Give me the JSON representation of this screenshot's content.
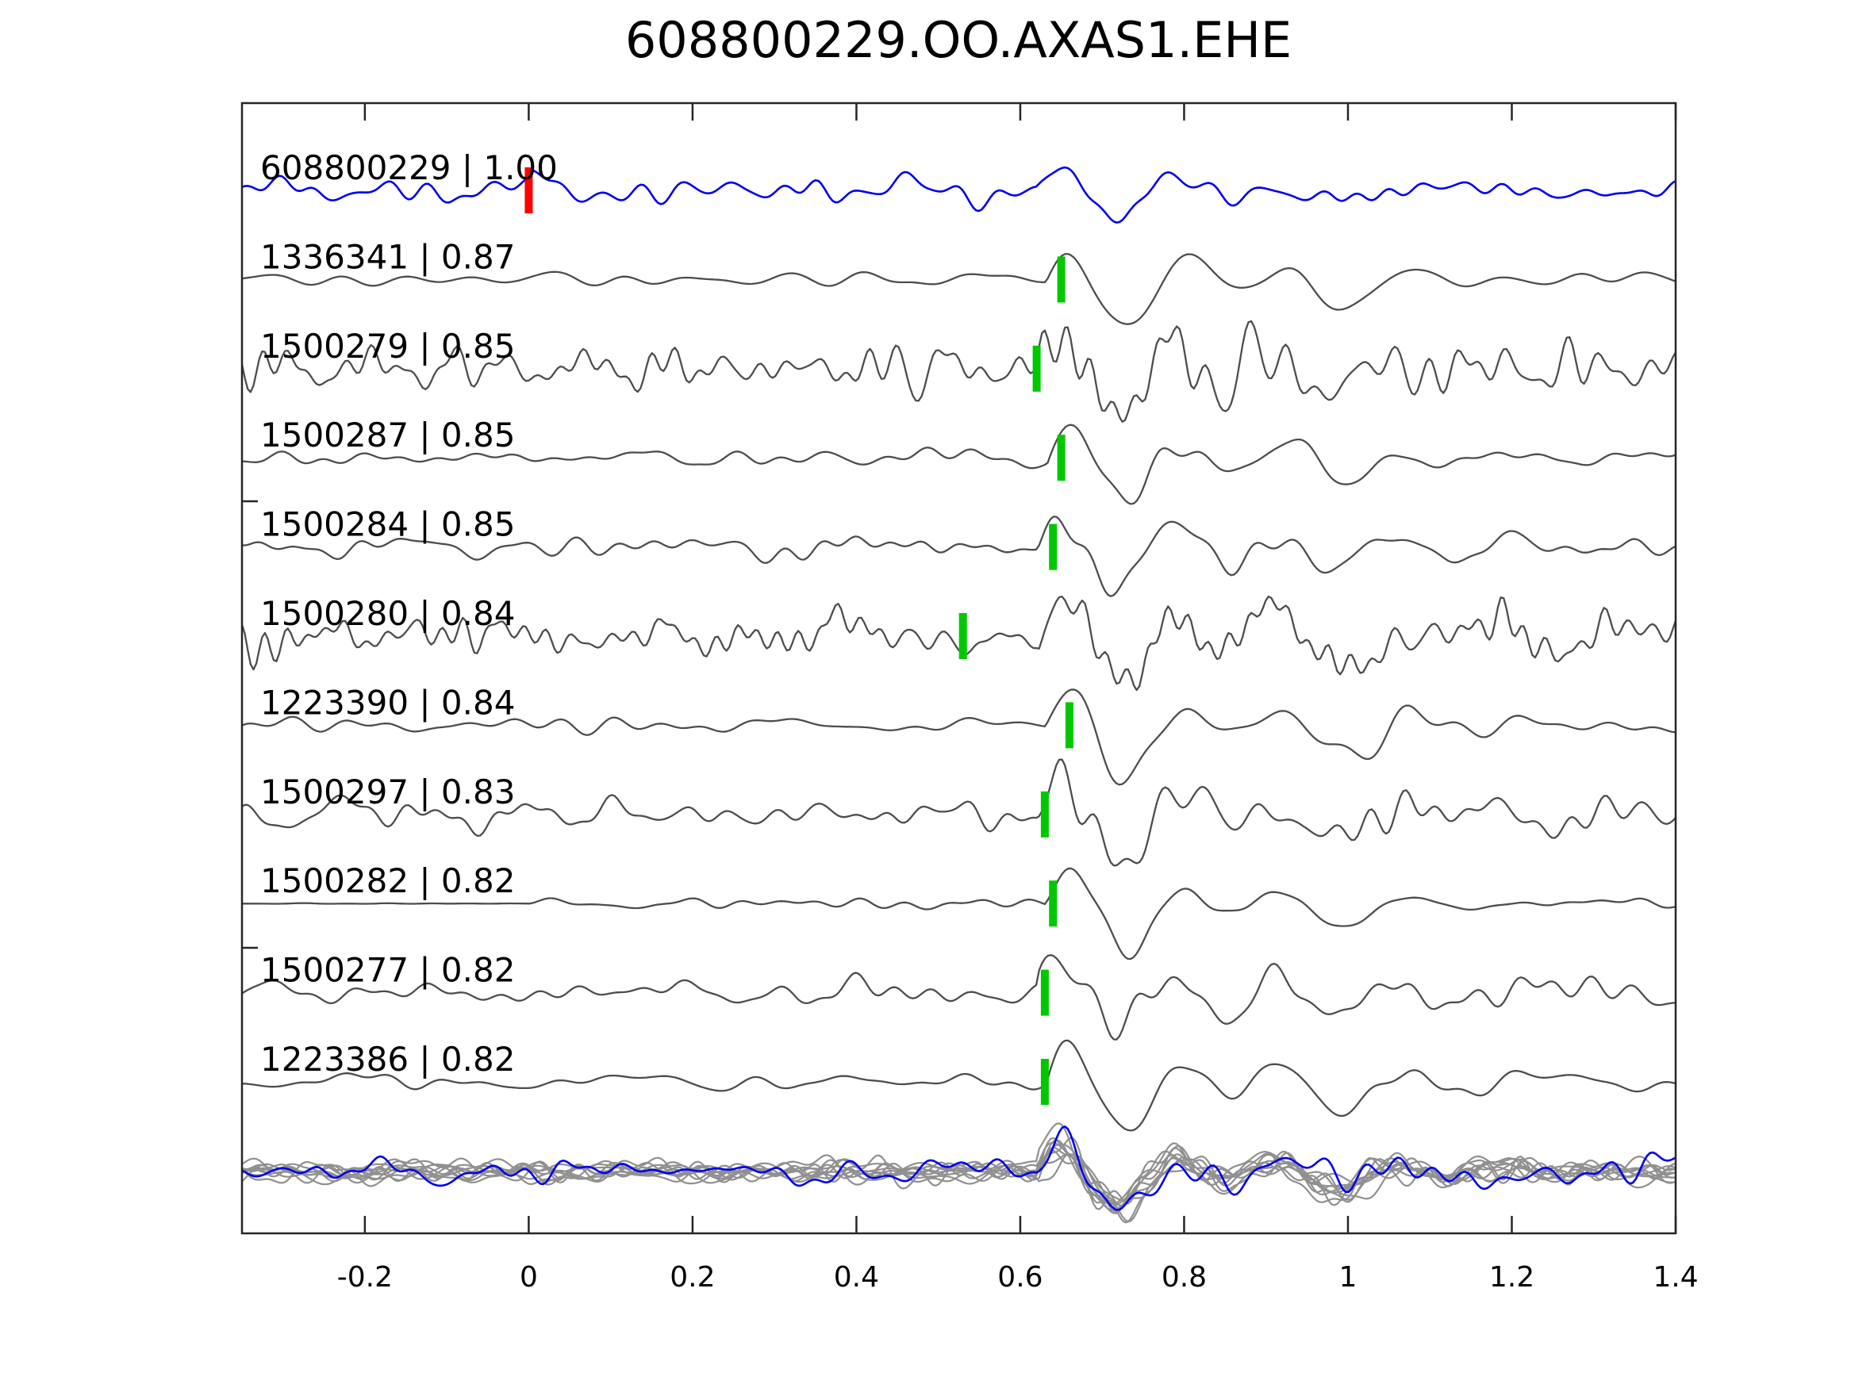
{
  "figure_title": "608800229.OO.AXAS1.EHE",
  "colors": {
    "background": "#ffffff",
    "axis": "#262626",
    "text": "#000000",
    "reference_trace": "#0000ee",
    "match_trace": "#4d4d4d",
    "overlay_trace": "#909090",
    "reference_pick": "#ff0000",
    "cc_pick": "#00c800"
  },
  "chart_data": {
    "type": "line",
    "title": "608800229.OO.AXAS1.EHE",
    "xlabel": "",
    "ylabel": "",
    "xlim": [
      -0.35,
      1.4
    ],
    "x_tick_values": [
      -0.2,
      0,
      0.2,
      0.4,
      0.6,
      0.8,
      1.0,
      1.2,
      1.4
    ],
    "x_tick_labels": [
      "-0.2",
      "0",
      "0.2",
      "0.4",
      "0.6",
      "0.8",
      "1",
      "1.2",
      "1.4"
    ],
    "grid": false,
    "legend": false,
    "reference_pick_time": 0.0,
    "rows": [
      {
        "id": "608800229",
        "correlation": "1.00",
        "label": "608800229 | 1.00",
        "role": "reference",
        "pick_time": 0.0,
        "pick_color": "#ff0000",
        "waveform": {
          "seed": 101,
          "noise_amp": 19,
          "noise_freq": 27,
          "event_time": 0.62,
          "event_amp": 26,
          "coda": 0.5,
          "boost_time": 0.0
        }
      },
      {
        "id": "1336341",
        "correlation": "0.87",
        "label": "1336341 | 0.87",
        "role": "match",
        "pick_time": 0.65,
        "pick_color": "#00c800",
        "waveform": {
          "seed": 202,
          "noise_amp": 10,
          "noise_freq": 15,
          "event_time": 0.63,
          "event_amp": 52,
          "coda": 0.9
        }
      },
      {
        "id": "1500279",
        "correlation": "0.85",
        "label": "1500279 | 0.85",
        "role": "match",
        "pick_time": 0.62,
        "pick_color": "#00c800",
        "waveform": {
          "seed": 303,
          "noise_amp": 35,
          "noise_freq": 36,
          "event_time": 0.62,
          "event_amp": 42,
          "coda": 0.7
        }
      },
      {
        "id": "1500287",
        "correlation": "0.85",
        "label": "1500287 | 0.85",
        "role": "match",
        "pick_time": 0.65,
        "pick_color": "#00c800",
        "waveform": {
          "seed": 404,
          "noise_amp": 13,
          "noise_freq": 20,
          "event_time": 0.63,
          "event_amp": 52,
          "coda": 0.9
        }
      },
      {
        "id": "1500284",
        "correlation": "0.85",
        "label": "1500284 | 0.85",
        "role": "match",
        "pick_time": 0.64,
        "pick_color": "#00c800",
        "waveform": {
          "seed": 505,
          "noise_amp": 17,
          "noise_freq": 24,
          "event_time": 0.62,
          "event_amp": 46,
          "coda": 0.8
        }
      },
      {
        "id": "1500280",
        "correlation": "0.84",
        "label": "1500280 | 0.84",
        "role": "match",
        "pick_time": 0.53,
        "pick_color": "#00c800",
        "waveform": {
          "seed": 606,
          "noise_amp": 33,
          "noise_freq": 40,
          "event_time": 0.62,
          "event_amp": 36,
          "coda": 0.6
        }
      },
      {
        "id": "1223390",
        "correlation": "0.84",
        "label": "1223390 | 0.84",
        "role": "match",
        "pick_time": 0.66,
        "pick_color": "#00c800",
        "waveform": {
          "seed": 707,
          "noise_amp": 13,
          "noise_freq": 17,
          "event_time": 0.63,
          "event_amp": 56,
          "coda": 1.0
        }
      },
      {
        "id": "1500297",
        "correlation": "0.83",
        "label": "1500297 | 0.83",
        "role": "match",
        "pick_time": 0.63,
        "pick_color": "#00c800",
        "waveform": {
          "seed": 808,
          "noise_amp": 26,
          "noise_freq": 30,
          "event_time": 0.62,
          "event_amp": 46,
          "coda": 0.7
        }
      },
      {
        "id": "1500282",
        "correlation": "0.82",
        "label": "1500282 | 0.82",
        "role": "match",
        "pick_time": 0.64,
        "pick_color": "#00c800",
        "waveform": {
          "seed": 909,
          "noise_amp": 8,
          "noise_freq": 20,
          "event_time": 0.63,
          "event_amp": 52,
          "coda": 1.1,
          "silent_before": 0.0
        }
      },
      {
        "id": "1500277",
        "correlation": "0.82",
        "label": "1500277 | 0.82",
        "role": "match",
        "pick_time": 0.63,
        "pick_color": "#00c800",
        "waveform": {
          "seed": 1010,
          "noise_amp": 20,
          "noise_freq": 22,
          "event_time": 0.62,
          "event_amp": 52,
          "coda": 0.9
        }
      },
      {
        "id": "1223386",
        "correlation": "0.82",
        "label": "1223386 | 0.82",
        "role": "match",
        "pick_time": 0.63,
        "pick_color": "#00c800",
        "waveform": {
          "seed": 1111,
          "noise_amp": 13,
          "noise_freq": 18,
          "event_time": 0.63,
          "event_amp": 56,
          "coda": 0.9
        }
      }
    ],
    "overlay_row": {
      "event_time": 0.62,
      "gray_traces": [
        {
          "seed": 21,
          "noise_amp": 16,
          "noise_freq": 26,
          "event_amp": 36
        },
        {
          "seed": 22,
          "noise_amp": 18,
          "noise_freq": 26,
          "event_amp": 40
        },
        {
          "seed": 23,
          "noise_amp": 14,
          "noise_freq": 26,
          "event_amp": 32
        },
        {
          "seed": 24,
          "noise_amp": 20,
          "noise_freq": 26,
          "event_amp": 42
        },
        {
          "seed": 25,
          "noise_amp": 17,
          "noise_freq": 26,
          "event_amp": 34
        },
        {
          "seed": 26,
          "noise_amp": 15,
          "noise_freq": 26,
          "event_amp": 38
        },
        {
          "seed": 27,
          "noise_amp": 19,
          "noise_freq": 26,
          "event_amp": 30
        },
        {
          "seed": 28,
          "noise_amp": 16,
          "noise_freq": 26,
          "event_amp": 36
        },
        {
          "seed": 29,
          "noise_amp": 18,
          "noise_freq": 26,
          "event_amp": 40
        },
        {
          "seed": 30,
          "noise_amp": 15,
          "noise_freq": 26,
          "event_amp": 34
        }
      ],
      "reference_trace": {
        "seed": 99,
        "noise_amp": 20,
        "noise_freq": 27,
        "event_amp": 34
      }
    }
  }
}
